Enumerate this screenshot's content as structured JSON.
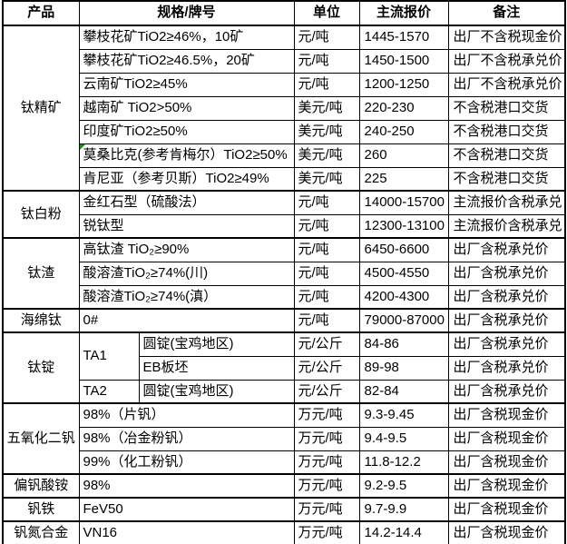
{
  "colors": {
    "border": "#000000",
    "background": "#ffffff",
    "flag": "#00a000",
    "text": "#000000"
  },
  "table": {
    "header": {
      "product": "产品",
      "spec": "规格/牌号",
      "unit": "单位",
      "price": "主流报价",
      "note": "备注"
    },
    "groups": [
      {
        "product": "钛精矿",
        "rows": [
          {
            "spec": "攀枝花矿TiO2≥46%，10矿",
            "unit": "元/吨",
            "price": "1445-1570",
            "note": "出厂不含税现金价"
          },
          {
            "spec": "攀枝花矿TiO2≥46.5%，20矿",
            "unit": "元/吨",
            "price": "1450-1500",
            "note": "出厂不含税承兑价"
          },
          {
            "spec": "云南矿TiO2≥45%",
            "unit": "元/吨",
            "price": "1200-1250",
            "note": "出厂不含税承兑价"
          },
          {
            "spec": "越南矿 TiO2>50%",
            "unit": "美元/吨",
            "price": "220-230",
            "note": "不含税港口交货"
          },
          {
            "spec": "印度矿TiO2≥50%",
            "unit": "美元/吨",
            "price": "240-250",
            "note": "不含税港口交货"
          },
          {
            "spec": "莫桑比克(参考肯梅尔）TiO2≥50%",
            "unit": "美元/吨",
            "price": "260",
            "note": "不含税港口交货",
            "flag": true
          },
          {
            "spec": "肯尼亚（参考贝斯）TiO2≥49%",
            "unit": "美元/吨",
            "price": "225",
            "note": "不含税港口交货"
          }
        ]
      },
      {
        "product": "钛白粉",
        "rows": [
          {
            "spec": "金红石型（硫酸法）",
            "unit": "元/吨",
            "price": "14000-15700",
            "note": "主流报价含税承兑"
          },
          {
            "spec": "锐钛型",
            "unit": "元/吨",
            "price": "12300-13100",
            "note": "主流报价含税承兑"
          }
        ]
      },
      {
        "product": "钛渣",
        "rows": [
          {
            "spec": "高钛渣 TiO₂≥90%",
            "unit": "元/吨",
            "price": "6450-6600",
            "note": "出厂含税承兑价"
          },
          {
            "spec": "酸溶渣TiO₂≥74%(川)",
            "unit": "元/吨",
            "price": "4500-4550",
            "note": "出厂含税承兑价"
          },
          {
            "spec": "酸溶渣TiO₂≥74%(滇）",
            "unit": "元/吨",
            "price": "4200-4300",
            "note": "出厂含税承兑价"
          }
        ]
      },
      {
        "product": "海绵钛",
        "rows": [
          {
            "spec": "0#",
            "unit": "元/吨",
            "price": "79000-87000",
            "note": "出厂含税承兑价"
          }
        ]
      },
      {
        "product": "钛锭",
        "rows": [
          {
            "grade": "TA1",
            "gradeRows": 2,
            "spec": "圆锭(宝鸡地区)",
            "unit": "元/公斤",
            "price": "84-86",
            "note": "出厂含税承兑价"
          },
          {
            "grade": "",
            "spec": "EB板坯",
            "unit": "元/公斤",
            "price": "89-98",
            "note": "出厂含税承兑价"
          },
          {
            "grade": "TA2",
            "gradeRows": 1,
            "spec": "圆锭(宝鸡地区)",
            "unit": "元/公斤",
            "price": "82-84",
            "note": "出厂含税承兑价"
          }
        ]
      },
      {
        "product": "五氧化二钒",
        "rows": [
          {
            "spec": "98%（片钒）",
            "unit": "万元/吨",
            "price": "9.3-9.45",
            "note": "出厂含税现金价"
          },
          {
            "spec": "98%（冶金粉钒）",
            "unit": "万元/吨",
            "price": "9.4-9.5",
            "note": "出厂含税现金价"
          },
          {
            "spec": "99%（化工粉钒）",
            "unit": "万元/吨",
            "price": "11.8-12.2",
            "note": "出厂含税现金价"
          }
        ]
      },
      {
        "product": "偏钒酸铵",
        "rows": [
          {
            "spec": "98%",
            "unit": "万元/吨",
            "price": "9.2-9.5",
            "note": "出厂含税现金价"
          }
        ]
      },
      {
        "product": "钒铁",
        "rows": [
          {
            "spec": "FeV50",
            "unit": "万元/吨",
            "price": "9.7-9.9",
            "note": "出厂含税现金价"
          }
        ]
      },
      {
        "product": "钒氮合金",
        "rows": [
          {
            "spec": "VN16",
            "unit": "万元/吨",
            "price": "14.2-14.4",
            "note": "出厂含税现金价"
          }
        ]
      }
    ]
  }
}
